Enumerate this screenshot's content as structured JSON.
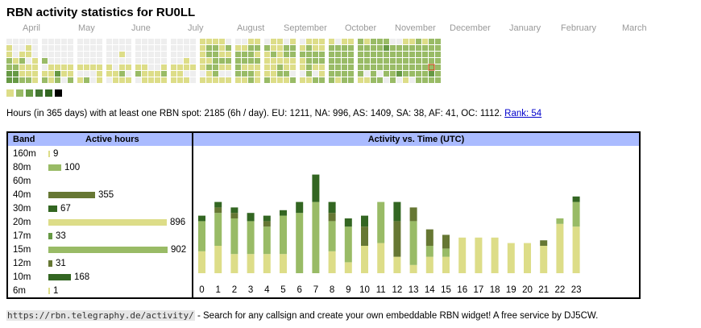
{
  "title": "RBN activity statistics for RU0LL",
  "heatmap": {
    "months": [
      "April",
      "May",
      "June",
      "July",
      "August",
      "September",
      "October",
      "November",
      "December",
      "January",
      "February",
      "March"
    ],
    "weeks": [
      "0112233",
      "0001233",
      "0012112",
      "0110112",
      "0001111",
      "0002012",
      "0000111",
      "0000132",
      "0000110",
      "0000112",
      "0000101",
      "0000102",
      "0000100",
      "0000111",
      "0000110",
      "0000011",
      "0010121",
      "0000101",
      "0000120",
      "0000111",
      "0000011",
      "0000011",
      "0000121",
      "0000111",
      "0000111",
      "0001101",
      "0000100",
      "1111101",
      "1221211",
      "1222221",
      "1112101",
      "0212101",
      "0122221",
      "0122121",
      "1222122",
      "1212111",
      "0211112",
      "1121111",
      "1111221",
      "0221121",
      "1221102",
      "0121101",
      "1222221",
      "1122102",
      "1122112",
      "1222222",
      "0222221",
      "1222222",
      "1222222",
      "2222221",
      "1222201",
      "2222222",
      "2222202",
      "2322220",
      "0222222",
      "0222230",
      "1222221",
      "1222220",
      "2222222",
      "1222222",
      "2222232",
      "2222222"
    ],
    "highlight_week": 60,
    "highlight_day": 4,
    "colors": [
      "#eeeeee",
      "#dddd88",
      "#99bb66",
      "#669944",
      "#447733",
      "#336622",
      "#000000"
    ]
  },
  "summary": {
    "text": "Hours (in 365 days) with at least one RBN spot: 2185 (6h / day). EU: 1211, NA: 996, AS: 1409, SA: 38, AF: 41, OC: 1112.",
    "rank": "Rank: 54"
  },
  "bands": {
    "header_band": "Band",
    "header_hours": "Active hours",
    "items": [
      {
        "band": "160m",
        "hours": "9",
        "color": "#dddd88"
      },
      {
        "band": "80m",
        "hours": "100",
        "color": "#99bb66"
      },
      {
        "band": "60m",
        "hours": "",
        "color": "#99bb66"
      },
      {
        "band": "40m",
        "hours": "355",
        "color": "#667733"
      },
      {
        "band": "30m",
        "hours": "67",
        "color": "#336622"
      },
      {
        "band": "20m",
        "hours": "896",
        "color": "#dddd88"
      },
      {
        "band": "17m",
        "hours": "33",
        "color": "#669944"
      },
      {
        "band": "15m",
        "hours": "902",
        "color": "#99bb66"
      },
      {
        "band": "12m",
        "hours": "31",
        "color": "#667733"
      },
      {
        "band": "10m",
        "hours": "168",
        "color": "#336622"
      },
      {
        "band": "6m",
        "hours": "1",
        "color": "#dddd88"
      }
    ]
  },
  "chart_data": {
    "type": "bar",
    "title": "Activity vs. Time (UTC)",
    "xlabel": "",
    "ylabel": "",
    "categories": [
      "0",
      "1",
      "2",
      "3",
      "4",
      "5",
      "6",
      "7",
      "8",
      "9",
      "10",
      "11",
      "12",
      "13",
      "14",
      "15",
      "16",
      "17",
      "18",
      "19",
      "20",
      "21",
      "22",
      "23"
    ],
    "stacked": true,
    "ylim": [
      0,
      40
    ],
    "series": [
      {
        "name": "20m",
        "color": "#dddd88",
        "values": [
          8,
          10,
          7,
          7,
          7,
          7,
          0,
          0,
          8,
          4,
          10,
          11,
          6,
          3,
          6,
          6,
          13,
          13,
          13,
          11,
          11,
          10,
          18,
          17
        ]
      },
      {
        "name": "15m",
        "color": "#99bb66",
        "values": [
          11,
          12,
          13,
          12,
          10,
          14,
          22,
          26,
          11,
          13,
          0,
          15,
          0,
          16,
          4,
          3,
          0,
          0,
          0,
          0,
          0,
          0,
          2,
          9
        ]
      },
      {
        "name": "40m",
        "color": "#667733",
        "values": [
          0,
          2,
          2,
          0,
          2,
          0,
          0,
          0,
          3,
          0,
          7,
          0,
          13,
          5,
          6,
          5,
          0,
          0,
          0,
          0,
          0,
          2,
          0,
          0
        ]
      },
      {
        "name": "10m",
        "color": "#336622",
        "values": [
          2,
          2,
          2,
          3,
          2,
          2,
          4,
          10,
          4,
          3,
          4,
          0,
          7,
          0,
          0,
          0,
          0,
          0,
          0,
          0,
          0,
          0,
          0,
          2
        ]
      },
      {
        "name": "80m",
        "color": "#557733",
        "values": [
          0,
          0,
          0,
          0,
          0,
          0,
          0,
          0,
          0,
          0,
          0,
          0,
          0,
          0,
          0,
          0,
          0,
          0,
          0,
          0,
          0,
          0,
          0,
          0
        ]
      }
    ]
  },
  "footer": {
    "url": "https://rbn.telegraphy.de/activity/",
    "text": " - Search for any callsign and create your own embeddable RBN widget! A free service by DJ5CW."
  }
}
